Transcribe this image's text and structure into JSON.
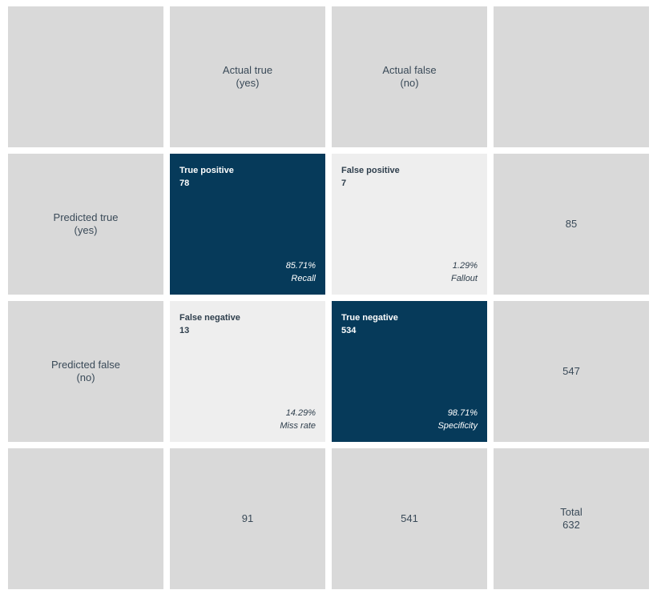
{
  "matrix": {
    "header": {
      "actual_true": {
        "line1": "Actual true",
        "line2": "(yes)"
      },
      "actual_false": {
        "line1": "Actual false",
        "line2": "(no)"
      }
    },
    "rows": {
      "predicted_true": {
        "line1": "Predicted true",
        "line2": "(yes)",
        "total": "85"
      },
      "predicted_false": {
        "line1": "Predicted false",
        "line2": "(no)",
        "total": "547"
      }
    },
    "cells": {
      "true_positive": {
        "title": "True positive",
        "count": "78",
        "percent": "85.71%",
        "metric": "Recall"
      },
      "false_positive": {
        "title": "False positive",
        "count": "7",
        "percent": "1.29%",
        "metric": "Fallout"
      },
      "false_negative": {
        "title": "False negative",
        "count": "13",
        "percent": "14.29%",
        "metric": "Miss rate"
      },
      "true_negative": {
        "title": "True negative",
        "count": "534",
        "percent": "98.71%",
        "metric": "Specificity"
      }
    },
    "column_totals": {
      "actual_true": "91",
      "actual_false": "541"
    },
    "grand_total": {
      "label": "Total",
      "value": "632"
    }
  },
  "colors": {
    "highlight": "#063a5a",
    "muted_cell": "#eeeeee",
    "header_cell": "#d9d9d9"
  }
}
